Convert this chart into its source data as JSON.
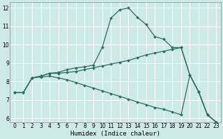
{
  "xlabel": "Humidex (Indice chaleur)",
  "xlim": [
    -0.5,
    23.5
  ],
  "ylim": [
    5.8,
    12.3
  ],
  "yticks": [
    6,
    7,
    8,
    9,
    10,
    11,
    12
  ],
  "xticks": [
    0,
    1,
    2,
    3,
    4,
    5,
    6,
    7,
    8,
    9,
    10,
    11,
    12,
    13,
    14,
    15,
    16,
    17,
    18,
    19,
    20,
    21,
    22,
    23
  ],
  "bg_color": "#ceeae7",
  "grid_color": "#ffffff",
  "line_color": "#2d6b63",
  "line1_x": [
    0,
    1,
    2,
    3,
    4,
    5,
    6,
    7,
    8,
    9,
    10,
    11,
    12,
    13,
    14,
    15,
    16,
    17,
    18,
    19,
    20,
    21,
    22,
    23
  ],
  "line1_y": [
    7.4,
    7.4,
    8.2,
    8.3,
    8.45,
    8.5,
    8.65,
    8.75,
    8.8,
    8.9,
    9.85,
    11.45,
    11.9,
    12.0,
    11.5,
    11.1,
    10.45,
    10.3,
    9.85,
    9.85,
    8.35,
    7.45,
    6.2,
    5.8
  ],
  "line2_x": [
    0,
    1,
    2,
    3,
    4,
    5,
    6,
    7,
    8,
    9,
    10,
    11,
    12,
    13,
    14,
    15,
    16,
    17,
    18,
    19,
    20,
    21,
    22,
    23
  ],
  "line2_y": [
    7.4,
    7.4,
    8.2,
    8.3,
    8.45,
    8.45,
    8.5,
    8.55,
    8.65,
    8.75,
    8.85,
    8.95,
    9.05,
    9.15,
    9.3,
    9.45,
    9.55,
    9.65,
    9.75,
    9.85,
    8.35,
    7.45,
    6.2,
    5.8
  ],
  "line3_x": [
    0,
    1,
    2,
    3,
    4,
    5,
    6,
    7,
    8,
    9,
    10,
    11,
    12,
    13,
    14,
    15,
    16,
    17,
    18,
    19,
    20,
    21,
    22,
    23
  ],
  "line3_y": [
    7.4,
    7.4,
    8.2,
    8.25,
    8.3,
    8.2,
    8.1,
    7.95,
    7.8,
    7.65,
    7.5,
    7.35,
    7.2,
    7.05,
    6.9,
    6.75,
    6.6,
    6.5,
    6.35,
    6.2,
    8.35,
    7.45,
    6.2,
    5.8
  ]
}
